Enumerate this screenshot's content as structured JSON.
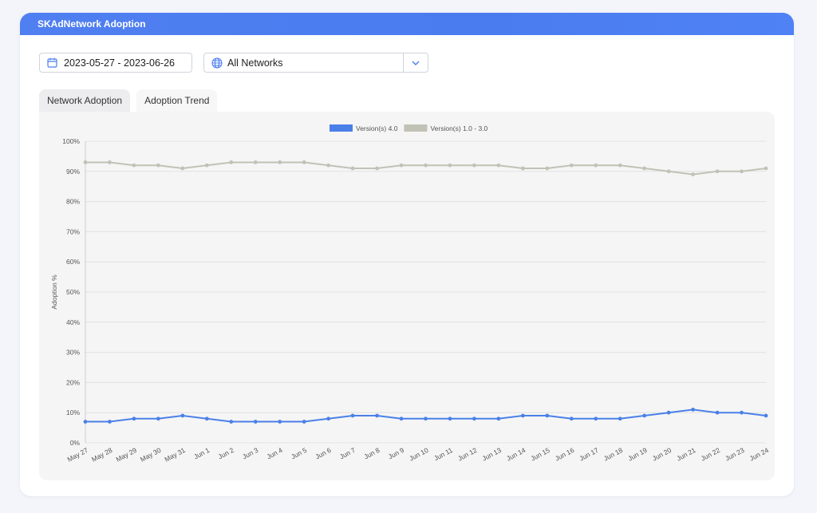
{
  "header": {
    "title": "SKAdNetwork Adoption"
  },
  "date_range": {
    "value": "2023-05-27 - 2023-06-26"
  },
  "network_filter": {
    "value": "All Networks"
  },
  "tabs": [
    {
      "label": "Network Adoption",
      "active": true
    },
    {
      "label": "Adoption Trend",
      "active": false
    }
  ],
  "colors": {
    "accent": "#4b7df0",
    "series_new": "#4a80e8",
    "series_old": "#c2c1b6"
  },
  "chart_data": {
    "type": "line",
    "ylabel": "Adoption %",
    "xlabel": "",
    "ylim": [
      0,
      100
    ],
    "yticks": [
      "0%",
      "10%",
      "20%",
      "30%",
      "40%",
      "50%",
      "60%",
      "70%",
      "80%",
      "90%",
      "100%"
    ],
    "grid": true,
    "legend_position": "top-center",
    "categories": [
      "May 27",
      "May 28",
      "May 29",
      "May 30",
      "May 31",
      "Jun 1",
      "Jun 2",
      "Jun 3",
      "Jun 4",
      "Jun 5",
      "Jun 6",
      "Jun 7",
      "Jun 8",
      "Jun 9",
      "Jun 10",
      "Jun 11",
      "Jun 12",
      "Jun 13",
      "Jun 14",
      "Jun 15",
      "Jun 16",
      "Jun 17",
      "Jun 18",
      "Jun 19",
      "Jun 20",
      "Jun 21",
      "Jun 22",
      "Jun 23",
      "Jun 24"
    ],
    "series": [
      {
        "name": "Version(s) 4.0",
        "color": "#4a80e8",
        "values": [
          7,
          7,
          8,
          8,
          9,
          8,
          7,
          7,
          7,
          7,
          8,
          9,
          9,
          8,
          8,
          8,
          8,
          8,
          9,
          9,
          8,
          8,
          8,
          9,
          10,
          11,
          10,
          10,
          9
        ]
      },
      {
        "name": "Version(s) 1.0 - 3.0",
        "color": "#c2c1b6",
        "values": [
          93,
          93,
          92,
          92,
          91,
          92,
          93,
          93,
          93,
          93,
          92,
          91,
          91,
          92,
          92,
          92,
          92,
          92,
          91,
          91,
          92,
          92,
          92,
          91,
          90,
          89,
          90,
          90,
          91
        ]
      }
    ]
  }
}
